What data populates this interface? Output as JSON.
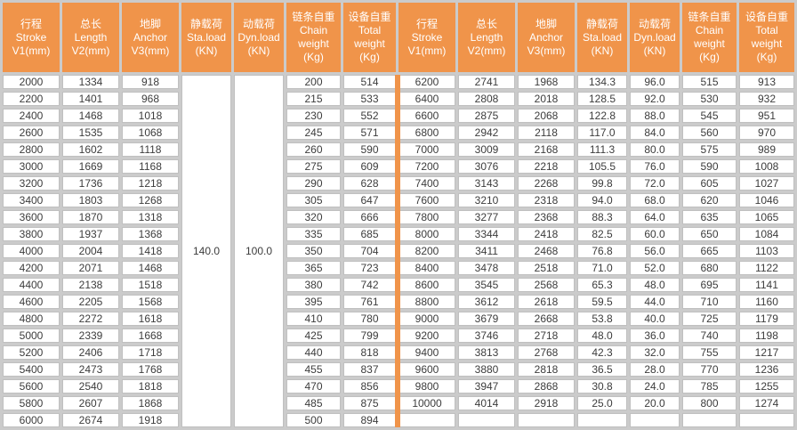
{
  "colors": {
    "header_bg": "#F0944A",
    "header_text": "#FFFFFF",
    "grid_bg": "#CBCBCB",
    "cell_bg": "#FFFFFF",
    "cell_border": "#C0C0C0",
    "body_text": "#3C3C3C",
    "group_separator": "#F0944A"
  },
  "table": {
    "header_labels": [
      "行程\nStroke\nV1(mm)",
      "总长\nLength\nV2(mm)",
      "地脚\nAnchor\nV3(mm)",
      "静载荷\nSta.load\n(KN)",
      "动载荷\nDyn.load\n(KN)",
      "链条自重\nChain\nweight\n(Kg)",
      "设备自重\nTotal\nweight\n(Kg)"
    ],
    "left_group": {
      "sta_load_merged": "140.0",
      "dyn_load_merged": "100.0",
      "rows": [
        [
          "2000",
          "1334",
          "918",
          "200",
          "514"
        ],
        [
          "2200",
          "1401",
          "968",
          "215",
          "533"
        ],
        [
          "2400",
          "1468",
          "1018",
          "230",
          "552"
        ],
        [
          "2600",
          "1535",
          "1068",
          "245",
          "571"
        ],
        [
          "2800",
          "1602",
          "1118",
          "260",
          "590"
        ],
        [
          "3000",
          "1669",
          "1168",
          "275",
          "609"
        ],
        [
          "3200",
          "1736",
          "1218",
          "290",
          "628"
        ],
        [
          "3400",
          "1803",
          "1268",
          "305",
          "647"
        ],
        [
          "3600",
          "1870",
          "1318",
          "320",
          "666"
        ],
        [
          "3800",
          "1937",
          "1368",
          "335",
          "685"
        ],
        [
          "4000",
          "2004",
          "1418",
          "350",
          "704"
        ],
        [
          "4200",
          "2071",
          "1468",
          "365",
          "723"
        ],
        [
          "4400",
          "2138",
          "1518",
          "380",
          "742"
        ],
        [
          "4600",
          "2205",
          "1568",
          "395",
          "761"
        ],
        [
          "4800",
          "2272",
          "1618",
          "410",
          "780"
        ],
        [
          "5000",
          "2339",
          "1668",
          "425",
          "799"
        ],
        [
          "5200",
          "2406",
          "1718",
          "440",
          "818"
        ],
        [
          "5400",
          "2473",
          "1768",
          "455",
          "837"
        ],
        [
          "5600",
          "2540",
          "1818",
          "470",
          "856"
        ],
        [
          "5800",
          "2607",
          "1868",
          "485",
          "875"
        ],
        [
          "6000",
          "2674",
          "1918",
          "500",
          "894"
        ]
      ]
    },
    "right_group": {
      "rows": [
        [
          "6200",
          "2741",
          "1968",
          "134.3",
          "96.0",
          "515",
          "913"
        ],
        [
          "6400",
          "2808",
          "2018",
          "128.5",
          "92.0",
          "530",
          "932"
        ],
        [
          "6600",
          "2875",
          "2068",
          "122.8",
          "88.0",
          "545",
          "951"
        ],
        [
          "6800",
          "2942",
          "2118",
          "117.0",
          "84.0",
          "560",
          "970"
        ],
        [
          "7000",
          "3009",
          "2168",
          "111.3",
          "80.0",
          "575",
          "989"
        ],
        [
          "7200",
          "3076",
          "2218",
          "105.5",
          "76.0",
          "590",
          "1008"
        ],
        [
          "7400",
          "3143",
          "2268",
          "99.8",
          "72.0",
          "605",
          "1027"
        ],
        [
          "7600",
          "3210",
          "2318",
          "94.0",
          "68.0",
          "620",
          "1046"
        ],
        [
          "7800",
          "3277",
          "2368",
          "88.3",
          "64.0",
          "635",
          "1065"
        ],
        [
          "8000",
          "3344",
          "2418",
          "82.5",
          "60.0",
          "650",
          "1084"
        ],
        [
          "8200",
          "3411",
          "2468",
          "76.8",
          "56.0",
          "665",
          "1103"
        ],
        [
          "8400",
          "3478",
          "2518",
          "71.0",
          "52.0",
          "680",
          "1122"
        ],
        [
          "8600",
          "3545",
          "2568",
          "65.3",
          "48.0",
          "695",
          "1141"
        ],
        [
          "8800",
          "3612",
          "2618",
          "59.5",
          "44.0",
          "710",
          "1160"
        ],
        [
          "9000",
          "3679",
          "2668",
          "53.8",
          "40.0",
          "725",
          "1179"
        ],
        [
          "9200",
          "3746",
          "2718",
          "48.0",
          "36.0",
          "740",
          "1198"
        ],
        [
          "9400",
          "3813",
          "2768",
          "42.3",
          "32.0",
          "755",
          "1217"
        ],
        [
          "9600",
          "3880",
          "2818",
          "36.5",
          "28.0",
          "770",
          "1236"
        ],
        [
          "9800",
          "3947",
          "2868",
          "30.8",
          "24.0",
          "785",
          "1255"
        ],
        [
          "10000",
          "4014",
          "2918",
          "25.0",
          "20.0",
          "800",
          "1274"
        ],
        [
          "",
          "",
          "",
          "",
          "",
          "",
          ""
        ]
      ]
    }
  }
}
